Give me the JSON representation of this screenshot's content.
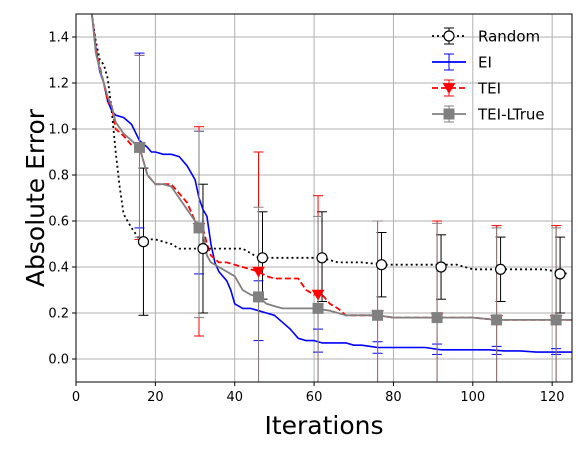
{
  "chart_data": {
    "type": "line",
    "title": "",
    "xlabel": "Iterations",
    "ylabel": "Absolute Error",
    "xlim": [
      0,
      125
    ],
    "ylim": [
      -0.1,
      1.5
    ],
    "xticks": [
      0,
      20,
      40,
      60,
      80,
      100,
      120
    ],
    "yticks": [
      0.0,
      0.2,
      0.4,
      0.6,
      0.8,
      1.0,
      1.2,
      1.4
    ],
    "grid": true,
    "legend_position": "top-right",
    "colors": {
      "Random": "#000000",
      "EI": "#0000ff",
      "TEI": "#ff0000",
      "TEI-LTrue": "#808080"
    },
    "series": [
      {
        "name": "Random",
        "style": "dotted",
        "marker": "circle-open",
        "x": [
          4,
          5,
          6,
          7,
          8,
          9,
          10,
          11,
          12,
          13,
          14,
          16,
          20,
          24,
          26,
          30,
          36,
          42,
          46,
          52,
          56,
          62,
          66,
          72,
          78,
          84,
          90,
          96,
          100,
          106,
          112,
          118,
          124
        ],
        "y": [
          1.5,
          1.38,
          1.3,
          1.28,
          1.22,
          1.08,
          0.9,
          0.75,
          0.63,
          0.6,
          0.57,
          0.52,
          0.52,
          0.5,
          0.48,
          0.48,
          0.48,
          0.48,
          0.44,
          0.44,
          0.44,
          0.44,
          0.42,
          0.42,
          0.41,
          0.41,
          0.41,
          0.41,
          0.39,
          0.39,
          0.39,
          0.39,
          0.37
        ],
        "marker_x": [
          17,
          32,
          47,
          62,
          77,
          92,
          107,
          122
        ],
        "marker_y": [
          0.51,
          0.48,
          0.44,
          0.44,
          0.41,
          0.4,
          0.39,
          0.37
        ],
        "err_low": [
          0.19,
          0.2,
          0.26,
          0.25,
          0.27,
          0.26,
          0.25,
          0.2
        ],
        "err_high": [
          0.83,
          0.76,
          0.64,
          0.64,
          0.55,
          0.54,
          0.53,
          0.53
        ]
      },
      {
        "name": "EI",
        "style": "solid",
        "marker": "none",
        "x": [
          4,
          5,
          6,
          7,
          8,
          9,
          10,
          12,
          14,
          16,
          18,
          19,
          20,
          22,
          24,
          26,
          28,
          30,
          31,
          32,
          33,
          34,
          35,
          36,
          38,
          39,
          40,
          42,
          44,
          46,
          48,
          50,
          52,
          54,
          56,
          58,
          60,
          62,
          64,
          66,
          68,
          70,
          72,
          74,
          76,
          78,
          80,
          84,
          88,
          92,
          96,
          100,
          104,
          108,
          112,
          116,
          120,
          125
        ],
        "y": [
          1.5,
          1.35,
          1.25,
          1.2,
          1.12,
          1.08,
          1.06,
          1.05,
          1.02,
          0.95,
          0.92,
          0.9,
          0.9,
          0.89,
          0.89,
          0.88,
          0.84,
          0.78,
          0.7,
          0.65,
          0.62,
          0.5,
          0.42,
          0.38,
          0.34,
          0.3,
          0.24,
          0.22,
          0.22,
          0.21,
          0.2,
          0.19,
          0.16,
          0.13,
          0.09,
          0.08,
          0.08,
          0.07,
          0.07,
          0.07,
          0.07,
          0.06,
          0.06,
          0.055,
          0.05,
          0.05,
          0.05,
          0.05,
          0.05,
          0.04,
          0.04,
          0.04,
          0.04,
          0.035,
          0.035,
          0.03,
          0.03,
          0.03
        ],
        "marker_x": [
          16,
          31,
          46,
          61,
          76,
          91,
          106,
          121
        ],
        "marker_y": [
          0.95,
          0.7,
          0.21,
          0.08,
          0.05,
          0.04,
          0.035,
          0.03
        ],
        "err_low": [
          0.57,
          0.37,
          0.08,
          0.03,
          0.025,
          0.02,
          0.02,
          0.02
        ],
        "err_high": [
          1.33,
          0.99,
          0.34,
          0.13,
          0.075,
          0.065,
          0.055,
          0.045
        ]
      },
      {
        "name": "TEI",
        "style": "dashed",
        "marker": "triangle-down",
        "x": [
          4,
          5,
          6,
          7,
          8,
          9,
          10,
          12,
          14,
          16,
          18,
          20,
          22,
          24,
          26,
          28,
          30,
          32,
          33,
          34,
          36,
          38,
          40,
          42,
          44,
          46,
          48,
          50,
          52,
          54,
          56,
          58,
          60,
          62,
          64,
          66,
          68,
          72,
          76,
          80,
          84,
          88,
          92,
          96,
          100,
          106,
          110,
          114,
          118,
          121,
          125
        ],
        "y": [
          1.5,
          1.35,
          1.27,
          1.2,
          1.12,
          1.1,
          1.0,
          0.97,
          0.93,
          0.92,
          0.8,
          0.76,
          0.76,
          0.76,
          0.72,
          0.68,
          0.6,
          0.57,
          0.5,
          0.45,
          0.42,
          0.42,
          0.41,
          0.4,
          0.39,
          0.38,
          0.36,
          0.35,
          0.35,
          0.35,
          0.35,
          0.3,
          0.28,
          0.28,
          0.24,
          0.22,
          0.19,
          0.19,
          0.19,
          0.18,
          0.18,
          0.18,
          0.18,
          0.18,
          0.18,
          0.17,
          0.17,
          0.17,
          0.17,
          0.17,
          0.17
        ],
        "marker_x": [
          16,
          31,
          46,
          61,
          76,
          91,
          106,
          121
        ],
        "marker_y": [
          0.92,
          0.57,
          0.38,
          0.28,
          0.19,
          0.18,
          0.17,
          0.17
        ],
        "err_low": [
          0.52,
          0.1,
          -0.1,
          -0.1,
          -0.1,
          -0.1,
          -0.1,
          -0.1
        ],
        "err_high": [
          1.32,
          1.01,
          0.9,
          0.71,
          0.6,
          0.6,
          0.58,
          0.58
        ]
      },
      {
        "name": "TEI-LTrue",
        "style": "solid",
        "marker": "square",
        "x": [
          4,
          5,
          6,
          7,
          8,
          9,
          10,
          12,
          14,
          16,
          18,
          20,
          22,
          24,
          26,
          28,
          30,
          32,
          33,
          34,
          36,
          38,
          40,
          42,
          44,
          46,
          48,
          50,
          52,
          54,
          56,
          60,
          64,
          68,
          72,
          76,
          80,
          84,
          88,
          92,
          96,
          100,
          106,
          110,
          114,
          118,
          121,
          125
        ],
        "y": [
          1.5,
          1.33,
          1.26,
          1.2,
          1.14,
          1.1,
          1.03,
          0.98,
          0.95,
          0.92,
          0.8,
          0.76,
          0.76,
          0.75,
          0.7,
          0.65,
          0.6,
          0.55,
          0.45,
          0.42,
          0.4,
          0.38,
          0.36,
          0.3,
          0.28,
          0.27,
          0.24,
          0.23,
          0.22,
          0.22,
          0.22,
          0.22,
          0.21,
          0.19,
          0.19,
          0.19,
          0.18,
          0.18,
          0.18,
          0.18,
          0.18,
          0.18,
          0.17,
          0.17,
          0.17,
          0.17,
          0.17,
          0.17
        ],
        "marker_x": [
          16,
          31,
          46,
          61,
          76,
          91,
          106,
          121
        ],
        "marker_y": [
          0.92,
          0.57,
          0.27,
          0.22,
          0.19,
          0.18,
          0.17,
          0.17
        ],
        "err_low": [
          0.53,
          0.18,
          -0.1,
          -0.1,
          -0.1,
          -0.1,
          -0.1,
          -0.1
        ],
        "err_high": [
          1.32,
          0.99,
          0.66,
          0.62,
          0.6,
          0.59,
          0.57,
          0.57
        ]
      }
    ]
  }
}
